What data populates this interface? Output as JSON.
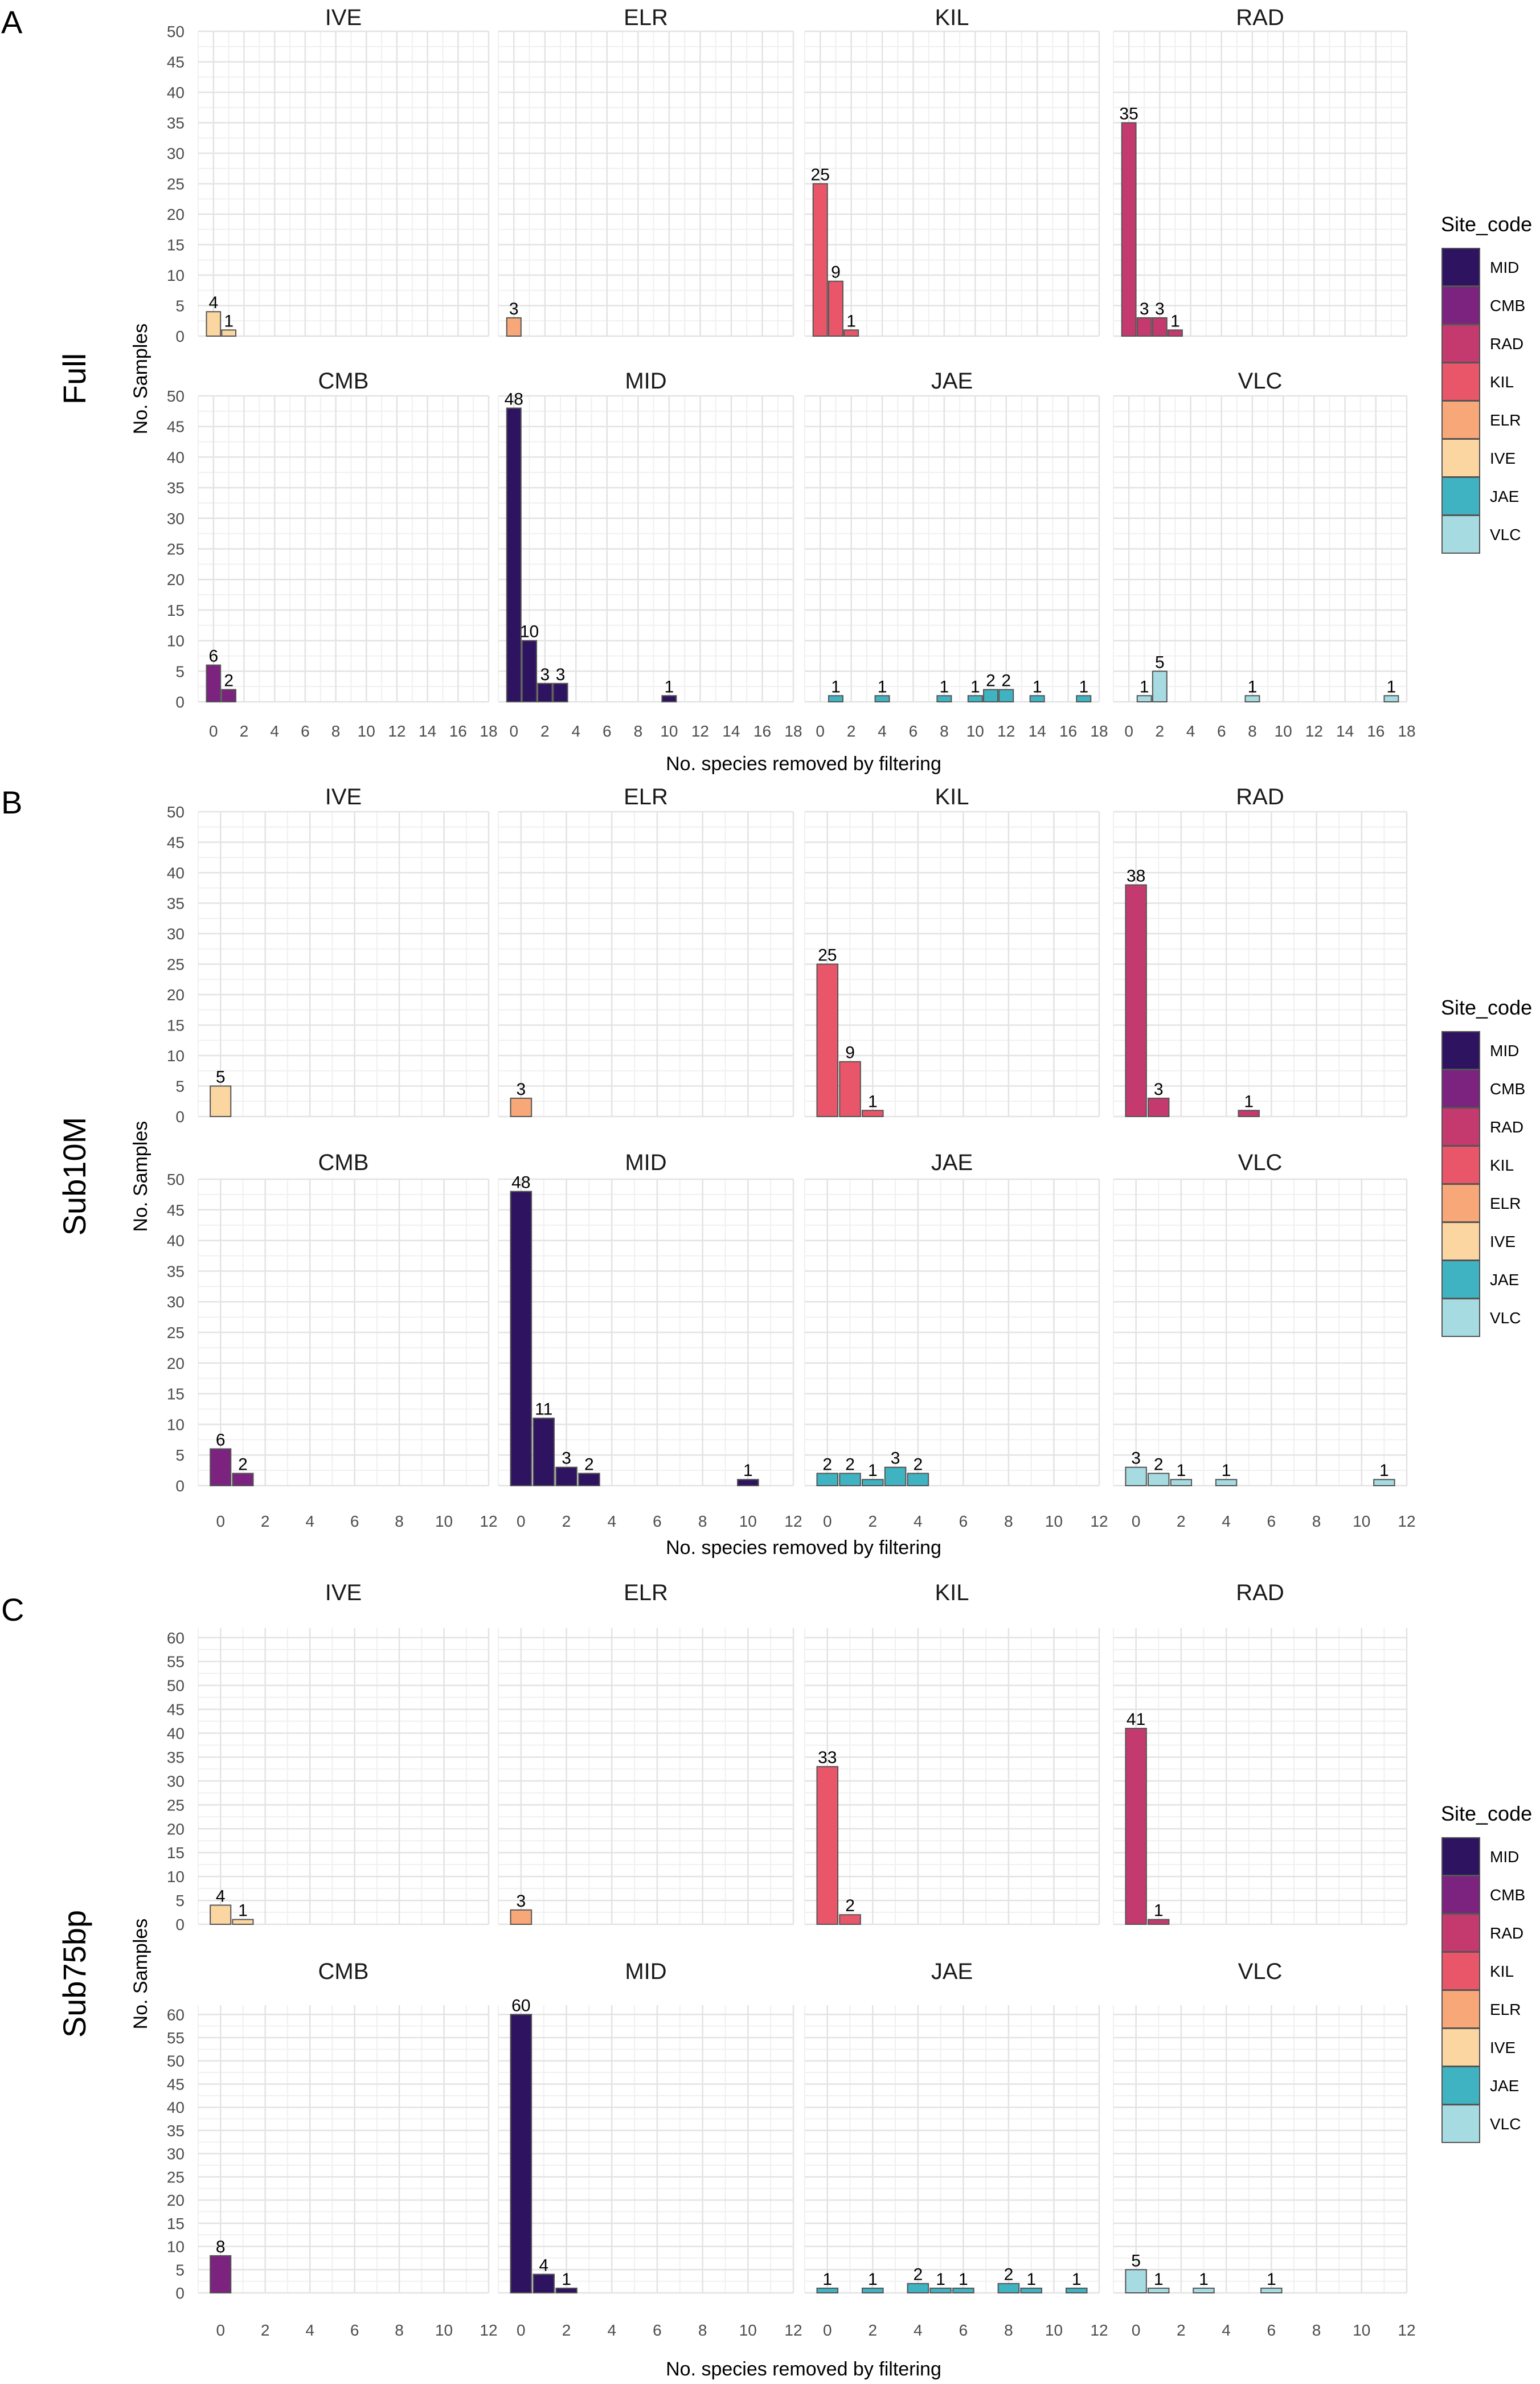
{
  "figure": {
    "y_axis_title": "No. Samples",
    "x_axis_title": "No. species removed by filtering"
  },
  "legend": {
    "title": "Site_code",
    "entries": [
      {
        "label": "MID",
        "color": "#2e1460"
      },
      {
        "label": "CMB",
        "color": "#7b237f"
      },
      {
        "label": "RAD",
        "color": "#c43a6e"
      },
      {
        "label": "KIL",
        "color": "#e9566a"
      },
      {
        "label": "ELR",
        "color": "#f7a778"
      },
      {
        "label": "IVE",
        "color": "#fbd6a0"
      },
      {
        "label": "JAE",
        "color": "#3fb3c2"
      },
      {
        "label": "VLC",
        "color": "#a6dbe2"
      }
    ]
  },
  "site_colors": {
    "MID": "#2e1460",
    "CMB": "#7b237f",
    "RAD": "#c43a6e",
    "KIL": "#e9566a",
    "ELR": "#f7a778",
    "IVE": "#fbd6a0",
    "JAE": "#3fb3c2",
    "VLC": "#a6dbe2"
  },
  "chart_data": [
    {
      "type": "bar",
      "panel_letter": "A",
      "row_title": "Full",
      "xlim": [
        -1,
        18
      ],
      "x_ticks": [
        0,
        2,
        4,
        6,
        8,
        10,
        12,
        14,
        16,
        18
      ],
      "ylim": [
        0,
        50
      ],
      "y_ticks": [
        0,
        5,
        10,
        15,
        20,
        25,
        30,
        35,
        40,
        45,
        50
      ],
      "facets": [
        {
          "site": "IVE",
          "bars": [
            {
              "x": 0,
              "y": 4
            },
            {
              "x": 1,
              "y": 1
            }
          ]
        },
        {
          "site": "ELR",
          "bars": [
            {
              "x": 0,
              "y": 3
            }
          ]
        },
        {
          "site": "KIL",
          "bars": [
            {
              "x": 0,
              "y": 25
            },
            {
              "x": 1,
              "y": 9
            },
            {
              "x": 2,
              "y": 1
            }
          ]
        },
        {
          "site": "RAD",
          "bars": [
            {
              "x": 0,
              "y": 35
            },
            {
              "x": 1,
              "y": 3
            },
            {
              "x": 2,
              "y": 3
            },
            {
              "x": 3,
              "y": 1
            }
          ]
        },
        {
          "site": "CMB",
          "bars": [
            {
              "x": 0,
              "y": 6
            },
            {
              "x": 1,
              "y": 2
            }
          ]
        },
        {
          "site": "MID",
          "bars": [
            {
              "x": 0,
              "y": 48
            },
            {
              "x": 1,
              "y": 10
            },
            {
              "x": 2,
              "y": 3
            },
            {
              "x": 3,
              "y": 3
            },
            {
              "x": 10,
              "y": 1
            }
          ]
        },
        {
          "site": "JAE",
          "bars": [
            {
              "x": 1,
              "y": 1
            },
            {
              "x": 4,
              "y": 1
            },
            {
              "x": 8,
              "y": 1
            },
            {
              "x": 10,
              "y": 1
            },
            {
              "x": 11,
              "y": 2
            },
            {
              "x": 12,
              "y": 2
            },
            {
              "x": 14,
              "y": 1
            },
            {
              "x": 17,
              "y": 1
            }
          ]
        },
        {
          "site": "VLC",
          "bars": [
            {
              "x": 1,
              "y": 1
            },
            {
              "x": 2,
              "y": 5
            },
            {
              "x": 8,
              "y": 1
            },
            {
              "x": 17,
              "y": 1
            }
          ]
        }
      ]
    },
    {
      "type": "bar",
      "panel_letter": "B",
      "row_title": "Sub10M",
      "xlim": [
        -1,
        12
      ],
      "x_ticks": [
        0,
        2,
        4,
        6,
        8,
        10,
        12
      ],
      "ylim": [
        0,
        50
      ],
      "y_ticks": [
        0,
        5,
        10,
        15,
        20,
        25,
        30,
        35,
        40,
        45,
        50
      ],
      "facets": [
        {
          "site": "IVE",
          "bars": [
            {
              "x": 0,
              "y": 5
            }
          ]
        },
        {
          "site": "ELR",
          "bars": [
            {
              "x": 0,
              "y": 3
            }
          ]
        },
        {
          "site": "KIL",
          "bars": [
            {
              "x": 0,
              "y": 25
            },
            {
              "x": 1,
              "y": 9
            },
            {
              "x": 2,
              "y": 1
            }
          ]
        },
        {
          "site": "RAD",
          "bars": [
            {
              "x": 0,
              "y": 38
            },
            {
              "x": 1,
              "y": 3
            },
            {
              "x": 5,
              "y": 1
            }
          ]
        },
        {
          "site": "CMB",
          "bars": [
            {
              "x": 0,
              "y": 6
            },
            {
              "x": 1,
              "y": 2
            }
          ]
        },
        {
          "site": "MID",
          "bars": [
            {
              "x": 0,
              "y": 48
            },
            {
              "x": 1,
              "y": 11
            },
            {
              "x": 2,
              "y": 3
            },
            {
              "x": 3,
              "y": 2
            },
            {
              "x": 10,
              "y": 1
            }
          ]
        },
        {
          "site": "JAE",
          "bars": [
            {
              "x": 0,
              "y": 2
            },
            {
              "x": 1,
              "y": 2
            },
            {
              "x": 2,
              "y": 1
            },
            {
              "x": 3,
              "y": 3
            },
            {
              "x": 4,
              "y": 2
            }
          ]
        },
        {
          "site": "VLC",
          "bars": [
            {
              "x": 0,
              "y": 3
            },
            {
              "x": 1,
              "y": 2
            },
            {
              "x": 2,
              "y": 1
            },
            {
              "x": 4,
              "y": 1
            },
            {
              "x": 11,
              "y": 1
            }
          ]
        }
      ]
    },
    {
      "type": "bar",
      "panel_letter": "C",
      "row_title": "Sub75bp",
      "xlim": [
        -1,
        12
      ],
      "x_ticks": [
        0,
        2,
        4,
        6,
        8,
        10,
        12
      ],
      "ylim": [
        0,
        62
      ],
      "y_ticks": [
        0,
        5,
        10,
        15,
        20,
        25,
        30,
        35,
        40,
        45,
        50,
        55,
        60
      ],
      "facets": [
        {
          "site": "IVE",
          "bars": [
            {
              "x": 0,
              "y": 4
            },
            {
              "x": 1,
              "y": 1
            }
          ]
        },
        {
          "site": "ELR",
          "bars": [
            {
              "x": 0,
              "y": 3
            }
          ]
        },
        {
          "site": "KIL",
          "bars": [
            {
              "x": 0,
              "y": 33
            },
            {
              "x": 1,
              "y": 2
            }
          ]
        },
        {
          "site": "RAD",
          "bars": [
            {
              "x": 0,
              "y": 41
            },
            {
              "x": 1,
              "y": 1
            }
          ]
        },
        {
          "site": "CMB",
          "bars": [
            {
              "x": 0,
              "y": 8
            }
          ]
        },
        {
          "site": "MID",
          "bars": [
            {
              "x": 0,
              "y": 60
            },
            {
              "x": 1,
              "y": 4
            },
            {
              "x": 2,
              "y": 1
            }
          ]
        },
        {
          "site": "JAE",
          "bars": [
            {
              "x": 0,
              "y": 1
            },
            {
              "x": 2,
              "y": 1
            },
            {
              "x": 4,
              "y": 2
            },
            {
              "x": 5,
              "y": 1
            },
            {
              "x": 6,
              "y": 1
            },
            {
              "x": 8,
              "y": 2
            },
            {
              "x": 9,
              "y": 1
            },
            {
              "x": 11,
              "y": 1
            }
          ]
        },
        {
          "site": "VLC",
          "bars": [
            {
              "x": 0,
              "y": 5
            },
            {
              "x": 1,
              "y": 1
            },
            {
              "x": 3,
              "y": 1
            },
            {
              "x": 6,
              "y": 1
            }
          ]
        }
      ]
    }
  ]
}
